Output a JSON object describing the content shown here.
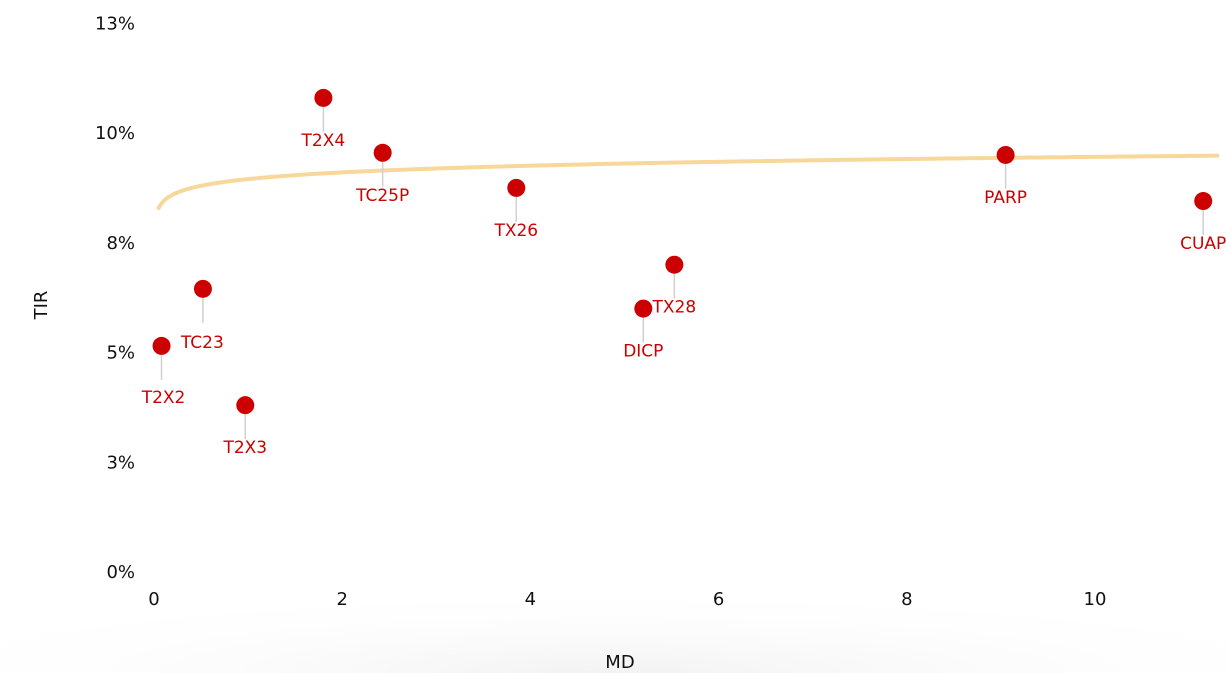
{
  "chart_data": {
    "type": "scatter",
    "title": "",
    "xlabel": "MD",
    "ylabel": "TIR",
    "xlim": [
      0,
      11.3
    ],
    "ylim": [
      0,
      12.5
    ],
    "x_ticks": [
      {
        "value": 0,
        "label": "0"
      },
      {
        "value": 2,
        "label": "2"
      },
      {
        "value": 4,
        "label": "4"
      },
      {
        "value": 6,
        "label": "6"
      },
      {
        "value": 8,
        "label": "8"
      },
      {
        "value": 10,
        "label": "10"
      }
    ],
    "y_ticks": [
      {
        "value": 0,
        "label": "0%"
      },
      {
        "value": 2.5,
        "label": "3%"
      },
      {
        "value": 5,
        "label": "5%"
      },
      {
        "value": 7.5,
        "label": "8%"
      },
      {
        "value": 10,
        "label": "10%"
      },
      {
        "value": 12.5,
        "label": "13%"
      }
    ],
    "points": [
      {
        "label": "T2X2",
        "x": 0.08,
        "y": 5.15,
        "label_pos": "below-left"
      },
      {
        "label": "TC23",
        "x": 0.52,
        "y": 6.45,
        "label_pos": "below-right"
      },
      {
        "label": "T2X3",
        "x": 0.97,
        "y": 3.8,
        "label_pos": "below"
      },
      {
        "label": "T2X4",
        "x": 1.8,
        "y": 10.8,
        "label_pos": "below"
      },
      {
        "label": "TC25P",
        "x": 2.43,
        "y": 9.55,
        "label_pos": "below"
      },
      {
        "label": "TX26",
        "x": 3.85,
        "y": 8.75,
        "label_pos": "below"
      },
      {
        "label": "DICP",
        "x": 5.2,
        "y": 6.0,
        "label_pos": "below"
      },
      {
        "label": "TX28",
        "x": 5.53,
        "y": 7.0,
        "label_pos": "below"
      },
      {
        "label": "PARP",
        "x": 9.05,
        "y": 9.5,
        "label_pos": "below"
      },
      {
        "label": "CUAP",
        "x": 11.15,
        "y": 8.45,
        "label_pos": "below"
      }
    ],
    "trendline": {
      "type": "logarithmic",
      "x_start": 0.05,
      "x_end": 11.3
    },
    "colors": {
      "points": "#cc0000",
      "labels": "#cc0000",
      "trendline": "#f8d79a",
      "leader": "#d0d0d0"
    }
  }
}
